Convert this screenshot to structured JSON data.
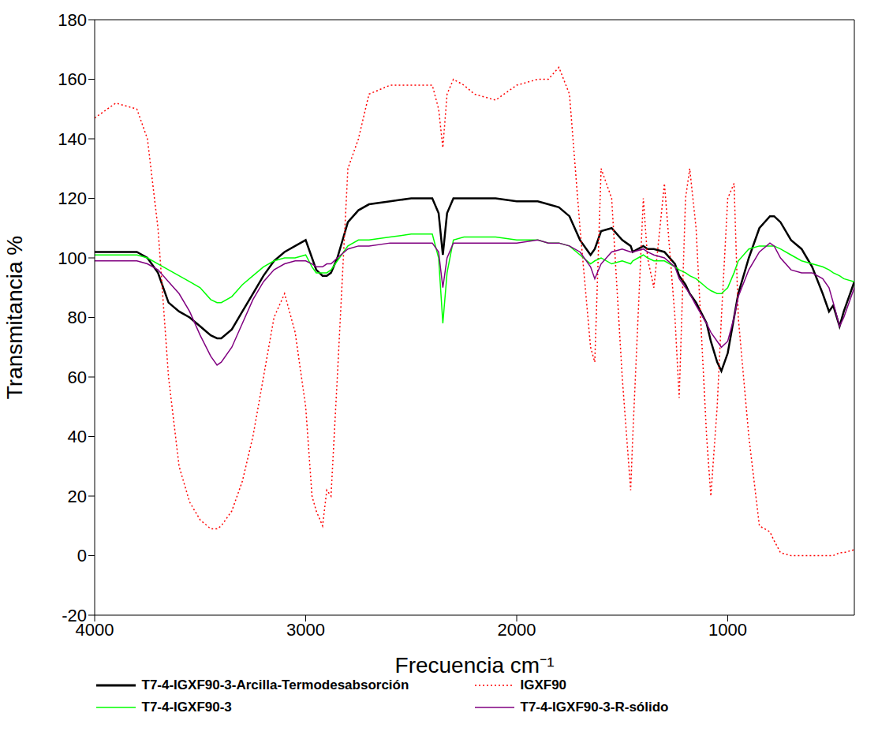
{
  "chart_data": {
    "type": "line",
    "x_label": "Frecuencia cm⁻¹",
    "y_label": "Transmitancia %",
    "xlim": [
      4000,
      400
    ],
    "xticks": [
      4000,
      3000,
      2000,
      1000
    ],
    "ylim": [
      -20,
      180
    ],
    "yticks": [
      -20,
      0,
      20,
      40,
      60,
      80,
      100,
      120,
      140,
      160,
      180
    ],
    "grid": false,
    "legend": "bottom",
    "x": [
      4000,
      3900,
      3800,
      3750,
      3700,
      3650,
      3600,
      3550,
      3500,
      3450,
      3420,
      3400,
      3350,
      3300,
      3250,
      3200,
      3150,
      3100,
      3050,
      3000,
      2970,
      2950,
      2920,
      2900,
      2880,
      2850,
      2800,
      2750,
      2700,
      2600,
      2500,
      2400,
      2370,
      2350,
      2330,
      2300,
      2250,
      2200,
      2100,
      2000,
      1900,
      1850,
      1800,
      1750,
      1700,
      1650,
      1630,
      1600,
      1550,
      1500,
      1460,
      1450,
      1400,
      1380,
      1350,
      1300,
      1250,
      1230,
      1200,
      1180,
      1150,
      1100,
      1080,
      1050,
      1030,
      1000,
      970,
      950,
      900,
      850,
      800,
      780,
      750,
      700,
      650,
      600,
      550,
      520,
      500,
      470,
      450,
      400
    ],
    "series": [
      {
        "name": "T7-4-IGXF90-3-Arcilla-Termodesabsorción",
        "color": "#000000",
        "line_style": "solid",
        "values": [
          102,
          102,
          102,
          100,
          95,
          85,
          82,
          80,
          77,
          74,
          73,
          73,
          76,
          82,
          88,
          94,
          99,
          102,
          104,
          106,
          100,
          96,
          94,
          94,
          95,
          100,
          112,
          116,
          118,
          119,
          120,
          120,
          115,
          101,
          115,
          120,
          120,
          120,
          120,
          119,
          119,
          118,
          117,
          114,
          106,
          101,
          103,
          109,
          110,
          106,
          104,
          102,
          104,
          103,
          103,
          102,
          98,
          94,
          91,
          88,
          85,
          78,
          72,
          65,
          62,
          68,
          80,
          88,
          100,
          110,
          114,
          114,
          112,
          106,
          103,
          97,
          88,
          82,
          84,
          77,
          82,
          92
        ]
      },
      {
        "name": "IGXF90",
        "color": "#ff0000",
        "line_style": "dotted",
        "values": [
          147,
          152,
          150,
          140,
          110,
          60,
          30,
          18,
          12,
          9,
          9,
          10,
          15,
          25,
          40,
          60,
          80,
          88,
          75,
          50,
          20,
          15,
          10,
          22,
          20,
          60,
          130,
          140,
          155,
          158,
          158,
          158,
          150,
          137,
          155,
          160,
          158,
          155,
          153,
          158,
          160,
          160,
          164,
          155,
          110,
          70,
          65,
          130,
          120,
          60,
          22,
          40,
          120,
          100,
          90,
          125,
          80,
          53,
          120,
          130,
          110,
          40,
          20,
          50,
          80,
          120,
          125,
          80,
          40,
          10,
          8,
          5,
          1,
          0,
          0,
          0,
          0,
          0,
          0,
          1,
          1,
          2
        ]
      },
      {
        "name": "T7-4-IGXF90-3",
        "color": "#00ff00",
        "line_style": "solid",
        "values": [
          101,
          101,
          101,
          100,
          98,
          96,
          94,
          92,
          90,
          86,
          85,
          85,
          87,
          91,
          94,
          97,
          99,
          100,
          100,
          101,
          97,
          95,
          95,
          95,
          96,
          99,
          104,
          106,
          106,
          107,
          108,
          108,
          100,
          78,
          95,
          106,
          107,
          107,
          107,
          106,
          106,
          105,
          105,
          104,
          101,
          98,
          99,
          100,
          98,
          99,
          98,
          99,
          101,
          100,
          99,
          99,
          97,
          96,
          95,
          94,
          93,
          90,
          89,
          88,
          88,
          90,
          95,
          99,
          103,
          104,
          104,
          104,
          103,
          101,
          99,
          98,
          97,
          96,
          95,
          94,
          93,
          92
        ]
      },
      {
        "name": "T7-4-IGXF90-3-R-sólido",
        "color": "#800080",
        "line_style": "solid",
        "values": [
          99,
          99,
          99,
          98,
          96,
          92,
          88,
          82,
          74,
          67,
          64,
          65,
          70,
          78,
          86,
          92,
          96,
          98,
          99,
          99,
          98,
          97,
          97,
          98,
          98,
          100,
          103,
          104,
          104,
          105,
          105,
          105,
          102,
          90,
          100,
          105,
          105,
          105,
          105,
          105,
          106,
          105,
          105,
          104,
          102,
          97,
          93,
          98,
          102,
          103,
          102,
          102,
          103,
          102,
          101,
          100,
          97,
          93,
          90,
          88,
          84,
          78,
          75,
          72,
          70,
          72,
          80,
          87,
          96,
          102,
          105,
          104,
          100,
          96,
          95,
          95,
          93,
          90,
          85,
          77,
          80,
          90
        ]
      }
    ]
  }
}
